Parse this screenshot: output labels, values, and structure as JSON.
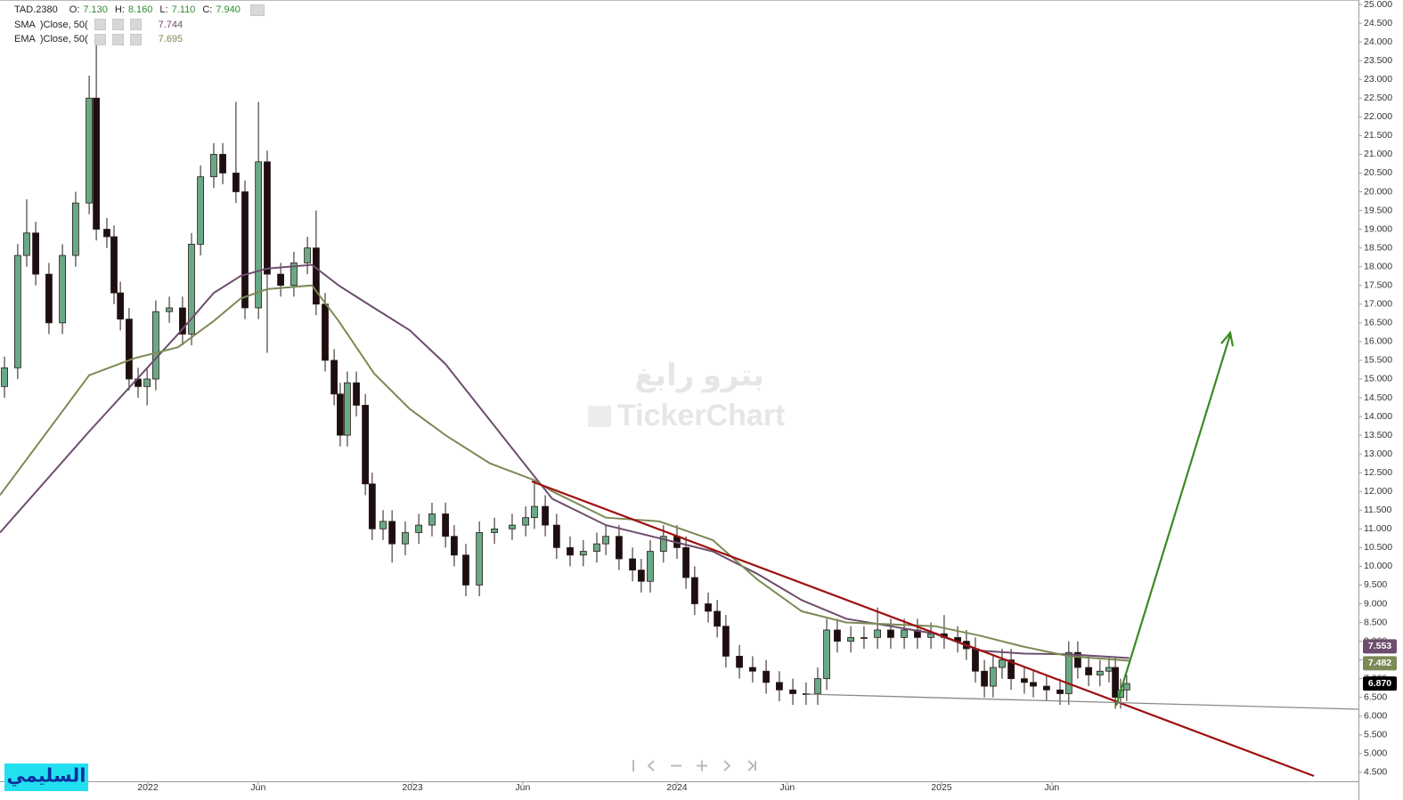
{
  "chart_data": {
    "type": "candlestick",
    "quote": {
      "symbol": "TAD.2380",
      "fields": [
        {
          "key": "O:",
          "value": "7.130"
        },
        {
          "key": "H:",
          "value": "8.160"
        },
        {
          "key": "L:",
          "value": "7.110"
        },
        {
          "key": "C:",
          "value": "7.940"
        }
      ]
    },
    "xlim": [
      2021.441,
      2026.576
    ],
    "ylim": [
      4.26,
      25.12
    ],
    "xticks": [
      {
        "value": 2022,
        "label": "2022"
      },
      {
        "value": 2022.417,
        "label": "Jun"
      },
      {
        "value": 2023,
        "label": "2023"
      },
      {
        "value": 2023.417,
        "label": "Jun"
      },
      {
        "value": 2024,
        "label": "2024"
      },
      {
        "value": 2024.417,
        "label": "Jun"
      },
      {
        "value": 2025,
        "label": "2025"
      },
      {
        "value": 2025.417,
        "label": "Jun"
      }
    ],
    "yticks": [
      {
        "value": 4.5,
        "label": "4.500"
      },
      {
        "value": 5,
        "label": "5.000"
      },
      {
        "value": 5.5,
        "label": "5.500"
      },
      {
        "value": 6,
        "label": "6.000"
      },
      {
        "value": 6.5,
        "label": "6.500"
      },
      {
        "value": 7,
        "label": "7.000"
      },
      {
        "value": 7.5,
        "label": "7.500"
      },
      {
        "value": 8,
        "label": "8.000"
      },
      {
        "value": 8.5,
        "label": "8.500"
      },
      {
        "value": 9,
        "label": "9.000"
      },
      {
        "value": 9.5,
        "label": "9.500"
      },
      {
        "value": 10,
        "label": "10.000"
      },
      {
        "value": 10.5,
        "label": "10.500"
      },
      {
        "value": 11,
        "label": "11.000"
      },
      {
        "value": 11.5,
        "label": "11.500"
      },
      {
        "value": 12,
        "label": "12.000"
      },
      {
        "value": 12.5,
        "label": "12.500"
      },
      {
        "value": 13,
        "label": "13.000"
      },
      {
        "value": 13.5,
        "label": "13.500"
      },
      {
        "value": 14,
        "label": "14.000"
      },
      {
        "value": 14.5,
        "label": "14.500"
      },
      {
        "value": 15,
        "label": "15.000"
      },
      {
        "value": 15.5,
        "label": "15.500"
      },
      {
        "value": 16,
        "label": "16.000"
      },
      {
        "value": 16.5,
        "label": "16.500"
      },
      {
        "value": 17,
        "label": "17.000"
      },
      {
        "value": 17.5,
        "label": "17.500"
      },
      {
        "value": 18,
        "label": "18.000"
      },
      {
        "value": 18.5,
        "label": "18.500"
      },
      {
        "value": 19,
        "label": "19.000"
      },
      {
        "value": 19.5,
        "label": "19.500"
      },
      {
        "value": 20,
        "label": "20.000"
      },
      {
        "value": 20.5,
        "label": "20.500"
      },
      {
        "value": 21,
        "label": "21.000"
      },
      {
        "value": 21.5,
        "label": "21.500"
      },
      {
        "value": 22,
        "label": "22.000"
      },
      {
        "value": 22.5,
        "label": "22.500"
      },
      {
        "value": 23,
        "label": "23.000"
      },
      {
        "value": 23.5,
        "label": "23.500"
      },
      {
        "value": 24,
        "label": "24.000"
      },
      {
        "value": 24.5,
        "label": "24.500"
      },
      {
        "value": 25,
        "label": "25.000"
      }
    ],
    "candles": {
      "x": [
        2021.458,
        2021.508,
        2021.542,
        2021.576,
        2021.626,
        2021.677,
        2021.727,
        2021.778,
        2021.805,
        2021.845,
        2021.872,
        2021.896,
        2021.929,
        2021.963,
        2021.997,
        2022.03,
        2022.081,
        2022.131,
        2022.165,
        2022.199,
        2022.249,
        2022.283,
        2022.333,
        2022.367,
        2022.418,
        2022.451,
        2022.502,
        2022.552,
        2022.603,
        2022.636,
        2022.67,
        2022.704,
        2022.727,
        2022.754,
        2022.788,
        2022.822,
        2022.848,
        2022.889,
        2022.923,
        2022.973,
        2023.024,
        2023.074,
        2023.125,
        2023.158,
        2023.202,
        2023.253,
        2023.31,
        2023.377,
        2023.428,
        2023.461,
        2023.502,
        2023.545,
        2023.596,
        2023.646,
        2023.697,
        2023.731,
        2023.781,
        2023.832,
        2023.865,
        2023.899,
        2023.949,
        2024.0,
        2024.034,
        2024.067,
        2024.118,
        2024.152,
        2024.185,
        2024.236,
        2024.286,
        2024.337,
        2024.387,
        2024.438,
        2024.488,
        2024.532,
        2024.566,
        2024.606,
        2024.657,
        2024.707,
        2024.758,
        2024.808,
        2024.859,
        2024.909,
        2024.96,
        2025.01,
        2025.061,
        2025.094,
        2025.128,
        2025.162,
        2025.195,
        2025.229,
        2025.263,
        2025.313,
        2025.347,
        2025.397,
        2025.448,
        2025.481,
        2025.515,
        2025.556,
        2025.599,
        2025.633,
        2025.657,
        2025.677,
        2025.7
      ],
      "open": [
        14.8,
        15.3,
        18.3,
        18.9,
        17.8,
        16.5,
        18.3,
        19.7,
        22.5,
        19.0,
        18.8,
        17.3,
        16.6,
        15.0,
        14.8,
        15.0,
        16.8,
        16.9,
        16.2,
        18.6,
        20.4,
        21.0,
        20.5,
        20.0,
        16.9,
        20.8,
        17.8,
        17.5,
        18.1,
        18.5,
        17.0,
        15.5,
        14.6,
        13.5,
        14.9,
        14.3,
        12.2,
        11.0,
        11.2,
        10.6,
        10.9,
        11.1,
        11.4,
        10.8,
        10.3,
        9.5,
        10.9,
        11.0,
        11.1,
        11.3,
        11.6,
        11.1,
        10.5,
        10.3,
        10.4,
        10.6,
        10.8,
        10.2,
        9.9,
        9.6,
        10.4,
        10.8,
        10.5,
        9.7,
        9.0,
        8.8,
        8.4,
        7.6,
        7.3,
        7.2,
        6.9,
        6.7,
        6.6,
        6.6,
        7.0,
        8.3,
        8.0,
        8.1,
        8.1,
        8.3,
        8.1,
        8.3,
        8.1,
        8.2,
        8.1,
        8.0,
        7.8,
        7.2,
        6.8,
        7.3,
        7.5,
        7.0,
        6.9,
        6.8,
        6.7,
        6.6,
        7.7,
        7.3,
        7.1,
        7.2,
        7.3,
        6.5,
        6.7
      ],
      "high": [
        15.6,
        18.6,
        19.8,
        19.2,
        18.1,
        18.6,
        20.0,
        23.1,
        24.0,
        19.3,
        19.1,
        17.6,
        16.9,
        15.3,
        15.3,
        17.1,
        17.2,
        17.2,
        18.9,
        20.7,
        21.3,
        21.3,
        22.4,
        20.3,
        22.4,
        21.1,
        18.1,
        18.4,
        18.8,
        19.5,
        17.3,
        15.8,
        14.9,
        15.2,
        15.2,
        14.6,
        12.5,
        11.5,
        11.5,
        11.2,
        11.4,
        11.7,
        11.7,
        11.1,
        10.6,
        11.2,
        11.3,
        11.4,
        11.6,
        12.3,
        11.9,
        11.4,
        10.8,
        10.7,
        10.9,
        11.1,
        11.1,
        10.5,
        10.2,
        10.7,
        11.1,
        11.1,
        10.8,
        10.0,
        9.3,
        9.1,
        8.7,
        7.9,
        7.6,
        7.5,
        7.2,
        7.0,
        6.9,
        7.3,
        8.6,
        8.6,
        8.4,
        8.4,
        8.9,
        8.6,
        8.6,
        8.6,
        8.5,
        8.7,
        8.4,
        8.3,
        8.1,
        7.5,
        7.6,
        7.8,
        7.8,
        7.3,
        7.2,
        7.1,
        7.0,
        8.0,
        8.0,
        7.6,
        7.5,
        7.6,
        7.6,
        7.0,
        7.1
      ],
      "low": [
        14.5,
        15.0,
        18.0,
        17.5,
        16.2,
        16.2,
        18.0,
        19.4,
        18.7,
        18.5,
        17.0,
        16.3,
        14.7,
        14.5,
        14.3,
        14.7,
        16.5,
        15.9,
        15.9,
        18.3,
        20.1,
        20.2,
        19.7,
        16.6,
        16.6,
        15.7,
        17.2,
        17.2,
        17.8,
        16.7,
        15.2,
        14.3,
        13.2,
        13.2,
        14.0,
        11.9,
        10.7,
        10.7,
        10.1,
        10.3,
        10.6,
        10.8,
        10.5,
        10.0,
        9.2,
        9.2,
        10.6,
        10.7,
        10.8,
        11.0,
        10.8,
        10.2,
        10.0,
        10.0,
        10.1,
        10.3,
        9.9,
        9.6,
        9.3,
        9.3,
        10.1,
        10.2,
        9.4,
        8.7,
        8.5,
        8.1,
        7.3,
        7.0,
        6.9,
        6.6,
        6.4,
        6.3,
        6.3,
        6.3,
        6.7,
        7.7,
        7.7,
        7.8,
        7.8,
        7.8,
        7.8,
        7.8,
        7.8,
        7.8,
        7.7,
        7.5,
        6.9,
        6.5,
        6.5,
        7.0,
        6.7,
        6.6,
        6.5,
        6.4,
        6.3,
        6.3,
        7.0,
        6.8,
        6.8,
        6.9,
        6.2,
        6.2,
        6.4
      ],
      "close": [
        15.3,
        18.3,
        18.9,
        17.8,
        16.5,
        18.3,
        19.7,
        22.5,
        19.0,
        18.8,
        17.3,
        16.6,
        15.0,
        14.8,
        15.0,
        16.8,
        16.9,
        16.2,
        18.6,
        20.4,
        21.0,
        20.5,
        20.0,
        16.9,
        20.8,
        17.8,
        17.5,
        18.1,
        18.5,
        17.0,
        15.5,
        14.6,
        13.5,
        14.9,
        14.3,
        12.2,
        11.0,
        11.2,
        10.6,
        10.9,
        11.1,
        11.4,
        10.8,
        10.3,
        9.5,
        10.9,
        11.0,
        11.1,
        11.3,
        11.6,
        11.1,
        10.5,
        10.3,
        10.4,
        10.6,
        10.8,
        10.2,
        9.9,
        9.6,
        10.4,
        10.8,
        10.5,
        9.7,
        9.0,
        8.8,
        8.4,
        7.6,
        7.3,
        7.2,
        6.9,
        6.7,
        6.6,
        6.6,
        7.0,
        8.3,
        8.0,
        8.1,
        8.1,
        8.3,
        8.1,
        8.3,
        8.1,
        8.2,
        8.1,
        8.0,
        7.8,
        7.2,
        6.8,
        7.3,
        7.5,
        7.0,
        6.9,
        6.8,
        6.7,
        6.6,
        7.7,
        7.3,
        7.1,
        7.2,
        7.3,
        6.5,
        6.7,
        6.87
      ],
      "up_color": "#6aa985",
      "down_color": "#1e0e10"
    },
    "ma_x": [
      2021.441,
      2021.778,
      2021.946,
      2022.114,
      2022.249,
      2022.35,
      2022.451,
      2022.62,
      2022.721,
      2022.855,
      2022.99,
      2023.125,
      2023.293,
      2023.461,
      2023.529,
      2023.731,
      2023.933,
      2024.135,
      2024.303,
      2024.471,
      2024.64,
      2024.808,
      2024.976,
      2025.145,
      2025.313,
      2025.481,
      2025.71
    ],
    "series": [
      {
        "name": "SMA",
        "params": ")Close, 50(",
        "last": "7.744",
        "color": "#6d4d6d",
        "values": [
          10.9,
          13.6,
          14.9,
          16.2,
          17.3,
          17.75,
          17.95,
          18.05,
          17.5,
          16.9,
          16.3,
          15.4,
          13.9,
          12.4,
          11.8,
          11.1,
          10.75,
          10.4,
          9.8,
          9.1,
          8.6,
          8.4,
          8.2,
          7.75,
          7.67,
          7.65,
          7.55
        ]
      },
      {
        "name": "EMA",
        "params": ")Close, 50(",
        "last": "7.695",
        "color": "#7c8a56",
        "values": [
          11.9,
          15.1,
          15.55,
          15.85,
          16.55,
          17.15,
          17.4,
          17.5,
          16.55,
          15.15,
          14.2,
          13.5,
          12.75,
          12.3,
          12.0,
          11.3,
          11.2,
          10.7,
          9.65,
          8.8,
          8.5,
          8.45,
          8.4,
          8.15,
          7.85,
          7.6,
          7.48
        ]
      }
    ],
    "price_labels": [
      {
        "value": 7.553,
        "label": "7.553",
        "color": "#6d4d6d"
      },
      {
        "value": 7.482,
        "label": "7.482",
        "color": "#7c8a56"
      },
      {
        "value": 6.87,
        "label": "6.870",
        "color": "#000000"
      }
    ],
    "watermark": [
      "بترو رابغ",
      "TickerChart"
    ],
    "badge": "السليمي"
  }
}
